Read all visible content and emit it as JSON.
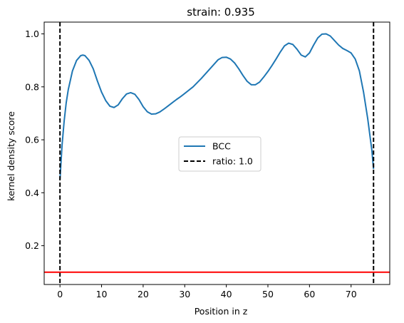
{
  "chart_data": {
    "type": "line",
    "title": "strain: 0.935",
    "xlabel": "Position in z",
    "ylabel": "kernel density score",
    "xlim": [
      -3.8,
      79.3
    ],
    "ylim": [
      0.0535,
      1.0445
    ],
    "xticks": [
      0,
      10,
      20,
      30,
      40,
      50,
      60,
      70
    ],
    "yticks": [
      0.2,
      0.4,
      0.6,
      0.8,
      1.0
    ],
    "ytick_labels": [
      "0.2",
      "0.4",
      "0.6",
      "0.8",
      "1.0"
    ],
    "grid": false,
    "legend_position": "center",
    "series": [
      {
        "name": "BCC",
        "color": "#1f77b4",
        "style": "solid",
        "x": [
          0,
          0.5,
          1,
          1.5,
          2,
          3,
          4,
          5,
          5.5,
          6,
          7,
          8,
          9,
          10,
          11,
          12,
          13,
          14,
          15,
          16,
          17,
          18,
          19,
          20,
          21,
          22,
          23,
          24,
          25,
          26,
          27,
          28,
          29,
          30,
          32,
          34,
          36,
          38,
          39,
          40,
          41,
          42,
          43,
          44,
          45,
          46,
          47,
          48,
          49,
          50,
          51,
          52,
          53,
          54,
          55,
          56,
          57,
          58,
          59,
          60,
          61,
          62,
          63,
          64,
          65,
          66,
          67,
          68,
          69,
          70,
          71,
          72,
          73,
          74,
          75,
          75.4
        ],
        "y": [
          0.45,
          0.58,
          0.67,
          0.74,
          0.79,
          0.86,
          0.9,
          0.918,
          0.92,
          0.918,
          0.9,
          0.868,
          0.822,
          0.78,
          0.748,
          0.727,
          0.722,
          0.732,
          0.755,
          0.773,
          0.778,
          0.772,
          0.752,
          0.725,
          0.706,
          0.697,
          0.698,
          0.705,
          0.716,
          0.728,
          0.74,
          0.752,
          0.763,
          0.775,
          0.8,
          0.832,
          0.867,
          0.902,
          0.911,
          0.912,
          0.905,
          0.89,
          0.868,
          0.843,
          0.821,
          0.808,
          0.808,
          0.818,
          0.837,
          0.858,
          0.881,
          0.906,
          0.932,
          0.955,
          0.965,
          0.96,
          0.942,
          0.92,
          0.913,
          0.928,
          0.958,
          0.985,
          0.999,
          1.0,
          0.992,
          0.975,
          0.958,
          0.945,
          0.937,
          0.928,
          0.905,
          0.86,
          0.78,
          0.68,
          0.56,
          0.49
        ]
      },
      {
        "name": "ratio: 1.0",
        "color": "#000000",
        "style": "dashed",
        "vlines": [
          0,
          75.4
        ]
      }
    ],
    "hline": {
      "y": 0.1,
      "color": "#ff0000"
    }
  }
}
